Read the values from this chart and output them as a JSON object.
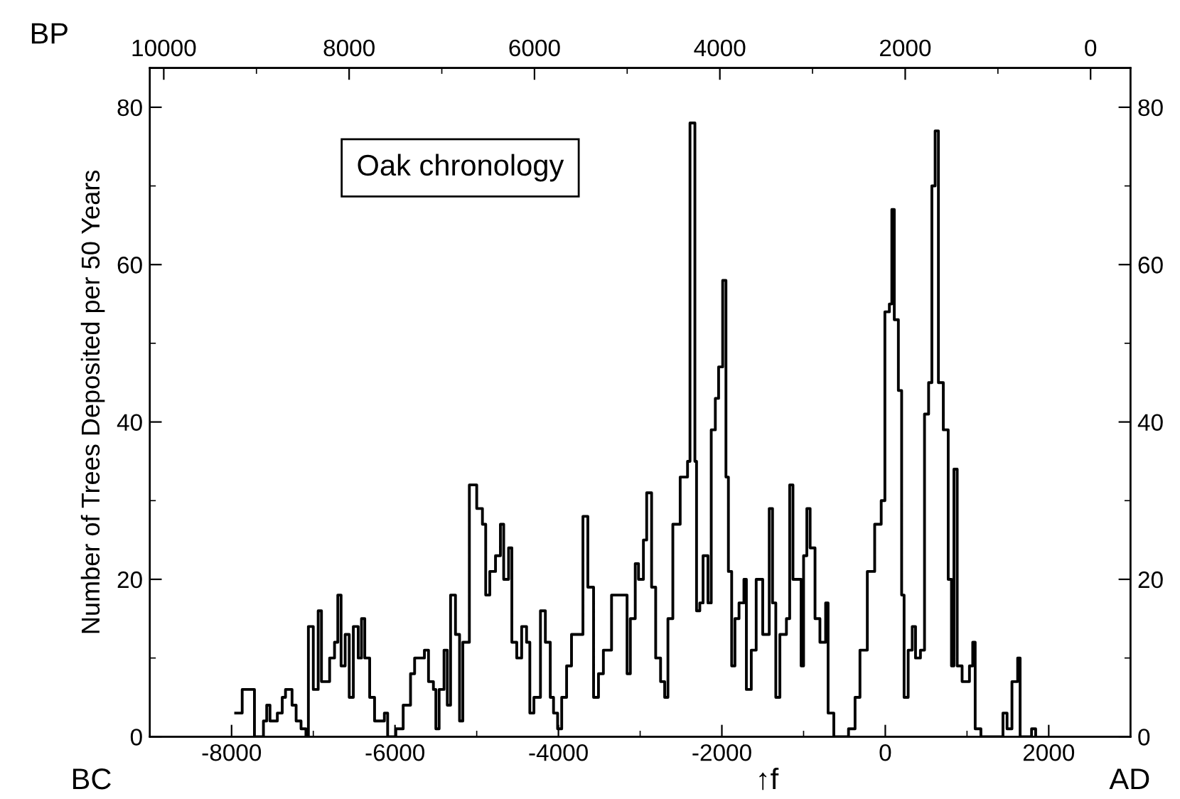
{
  "chart_data": {
    "type": "step",
    "ylabel": "Number of Trees Deposited per 50 Years",
    "annotations": [
      "Oak chronology",
      "BP",
      "BC",
      "AD",
      "↑f"
    ],
    "xlim": [
      -9000,
      3000
    ],
    "xticks": [
      -8000,
      -6000,
      -4000,
      -2000,
      0,
      2000
    ],
    "x2lim": [
      10150,
      -430
    ],
    "x2ticks": [
      10000,
      8000,
      6000,
      4000,
      2000,
      0
    ],
    "ylim": [
      0,
      85
    ],
    "yticks": [
      0,
      20,
      40,
      60,
      80
    ],
    "y2lim": [
      0,
      85
    ],
    "y2ticks": [
      0,
      20,
      40,
      60,
      80
    ],
    "grid": false,
    "marker": "none",
    "line_style": "solid",
    "series": [
      {
        "color": "#000000",
        "x": [
          -7950,
          -7870,
          -7810,
          -7720,
          -7610,
          -7570,
          -7530,
          -7440,
          -7380,
          -7340,
          -7260,
          -7210,
          -7150,
          -7090,
          -7060,
          -7000,
          -6940,
          -6900,
          -6860,
          -6800,
          -6740,
          -6700,
          -6660,
          -6610,
          -6560,
          -6510,
          -6450,
          -6410,
          -6370,
          -6310,
          -6250,
          -6190,
          -6130,
          -6090,
          -5990,
          -5900,
          -5810,
          -5760,
          -5700,
          -5640,
          -5590,
          -5530,
          -5500,
          -5460,
          -5400,
          -5360,
          -5320,
          -5260,
          -5210,
          -5170,
          -5090,
          -5000,
          -4930,
          -4890,
          -4840,
          -4770,
          -4710,
          -4670,
          -4610,
          -4570,
          -4510,
          -4450,
          -4390,
          -4350,
          -4300,
          -4220,
          -4160,
          -4100,
          -4060,
          -4010,
          -3960,
          -3900,
          -3840,
          -3760,
          -3700,
          -3640,
          -3570,
          -3510,
          -3450,
          -3350,
          -3160,
          -3120,
          -3060,
          -3020,
          -2960,
          -2920,
          -2860,
          -2810,
          -2750,
          -2700,
          -2660,
          -2600,
          -2510,
          -2480,
          -2420,
          -2390,
          -2330,
          -2310,
          -2270,
          -2230,
          -2170,
          -2130,
          -2080,
          -2040,
          -1990,
          -1950,
          -1920,
          -1880,
          -1840,
          -1790,
          -1730,
          -1700,
          -1640,
          -1580,
          -1500,
          -1420,
          -1380,
          -1340,
          -1290,
          -1210,
          -1170,
          -1130,
          -1030,
          -1000,
          -960,
          -920,
          -860,
          -800,
          -730,
          -700,
          -630,
          -450,
          -370,
          -310,
          -220,
          -130,
          -50,
          -5,
          50,
          80,
          110,
          160,
          200,
          230,
          280,
          330,
          370,
          430,
          480,
          530,
          570,
          610,
          650,
          710,
          770,
          810,
          840,
          880,
          940,
          1030,
          1070,
          1100,
          1170,
          1440,
          1490,
          1550,
          1620,
          1650,
          1790,
          1840
        ],
        "values": [
          3,
          6,
          6,
          0,
          2,
          4,
          2,
          3,
          5,
          6,
          4,
          2,
          1,
          0,
          14,
          6,
          16,
          7,
          7,
          10,
          12,
          18,
          9,
          13,
          5,
          14,
          10,
          15,
          10,
          5,
          2,
          2,
          3,
          0,
          1,
          4,
          8,
          10,
          10,
          11,
          7,
          6,
          1,
          6,
          11,
          4,
          18,
          13,
          2,
          12,
          32,
          29,
          27,
          18,
          21,
          23,
          27,
          20,
          24,
          12,
          10,
          14,
          12,
          3,
          5,
          16,
          12,
          5,
          3,
          1,
          5,
          9,
          13,
          13,
          28,
          19,
          5,
          8,
          11,
          18,
          8,
          15,
          22,
          20,
          25,
          31,
          19,
          10,
          7,
          5,
          15,
          27,
          33,
          33,
          35,
          78,
          35,
          16,
          17,
          23,
          17,
          39,
          43,
          47,
          58,
          33,
          21,
          9,
          15,
          17,
          20,
          6,
          11,
          20,
          13,
          29,
          17,
          5,
          13,
          15,
          32,
          20,
          9,
          23,
          29,
          24,
          15,
          12,
          17,
          3,
          0,
          1,
          5,
          11,
          21,
          27,
          30,
          54,
          55,
          67,
          53,
          44,
          18,
          5,
          11,
          14,
          10,
          11,
          41,
          45,
          70,
          77,
          45,
          39,
          20,
          9,
          34,
          9,
          7,
          9,
          12,
          1,
          0,
          3,
          1,
          7,
          10,
          0,
          1,
          0
        ]
      }
    ]
  }
}
